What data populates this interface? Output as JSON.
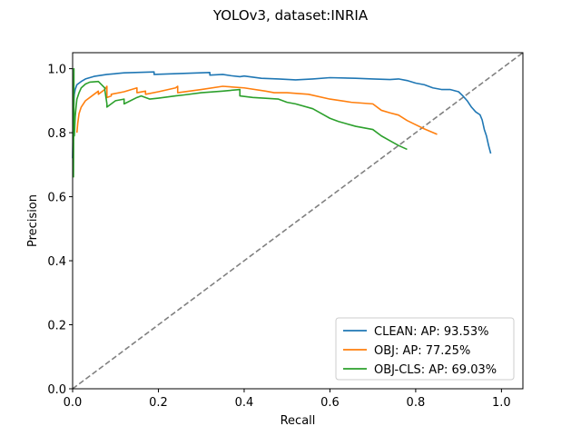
{
  "chart_data": {
    "type": "line",
    "title": "YOLOv3, dataset:INRIA",
    "xlabel": "Recall",
    "ylabel": "Precision",
    "xlim": [
      0,
      1.05
    ],
    "ylim": [
      0,
      1.05
    ],
    "xticks": [
      0.0,
      0.2,
      0.4,
      0.6,
      0.8,
      1.0
    ],
    "yticks": [
      0.0,
      0.2,
      0.4,
      0.6,
      0.8,
      1.0
    ],
    "xtick_labels": [
      "0.0",
      "0.2",
      "0.4",
      "0.6",
      "0.8",
      "1.0"
    ],
    "ytick_labels": [
      "0.0",
      "0.2",
      "0.4",
      "0.6",
      "0.8",
      "1.0"
    ],
    "legend_position": "lower-right",
    "grid": false,
    "reference_line": {
      "x": [
        0,
        1.05
      ],
      "y": [
        0,
        1.05
      ],
      "color": "#808080",
      "style": "dashed"
    },
    "series": [
      {
        "name": "CLEAN: AP: 93.53%",
        "color": "#1f77b4",
        "x": [
          0.0,
          0.001,
          0.002,
          0.003,
          0.004,
          0.006,
          0.01,
          0.02,
          0.03,
          0.05,
          0.08,
          0.12,
          0.19,
          0.19,
          0.32,
          0.32,
          0.35,
          0.37,
          0.39,
          0.4,
          0.44,
          0.48,
          0.52,
          0.56,
          0.6,
          0.66,
          0.7,
          0.74,
          0.76,
          0.78,
          0.8,
          0.82,
          0.84,
          0.86,
          0.88,
          0.9,
          0.91,
          0.92,
          0.93,
          0.94,
          0.95,
          0.955,
          0.96,
          0.965,
          0.97,
          0.975
        ],
        "y": [
          0.72,
          0.8,
          0.86,
          0.9,
          0.92,
          0.935,
          0.95,
          0.96,
          0.968,
          0.976,
          0.982,
          0.987,
          0.99,
          0.982,
          0.988,
          0.98,
          0.982,
          0.978,
          0.975,
          0.977,
          0.97,
          0.968,
          0.965,
          0.968,
          0.972,
          0.97,
          0.968,
          0.966,
          0.968,
          0.963,
          0.955,
          0.95,
          0.94,
          0.935,
          0.935,
          0.928,
          0.915,
          0.9,
          0.88,
          0.865,
          0.856,
          0.84,
          0.81,
          0.79,
          0.76,
          0.735
        ]
      },
      {
        "name": "OBJ: AP: 77.25%",
        "color": "#ff7f0e",
        "x": [
          0.01,
          0.012,
          0.015,
          0.02,
          0.03,
          0.05,
          0.06,
          0.06,
          0.075,
          0.08,
          0.08,
          0.09,
          0.09,
          0.12,
          0.15,
          0.15,
          0.17,
          0.17,
          0.2,
          0.24,
          0.245,
          0.245,
          0.3,
          0.35,
          0.4,
          0.45,
          0.47,
          0.5,
          0.55,
          0.6,
          0.65,
          0.7,
          0.72,
          0.74,
          0.76,
          0.78,
          0.8,
          0.82,
          0.85
        ],
        "y": [
          0.8,
          0.83,
          0.86,
          0.88,
          0.9,
          0.92,
          0.93,
          0.92,
          0.935,
          0.945,
          0.91,
          0.915,
          0.92,
          0.928,
          0.94,
          0.925,
          0.93,
          0.92,
          0.928,
          0.94,
          0.945,
          0.925,
          0.935,
          0.945,
          0.94,
          0.93,
          0.925,
          0.925,
          0.92,
          0.905,
          0.895,
          0.89,
          0.87,
          0.862,
          0.855,
          0.838,
          0.825,
          0.812,
          0.795
        ]
      },
      {
        "name": "OBJ-CLS: AP: 69.03%",
        "color": "#2ca02c",
        "x": [
          0.002,
          0.003,
          0.003,
          0.004,
          0.005,
          0.006,
          0.008,
          0.01,
          0.015,
          0.02,
          0.03,
          0.04,
          0.06,
          0.075,
          0.075,
          0.08,
          0.08,
          0.09,
          0.1,
          0.12,
          0.12,
          0.15,
          0.16,
          0.18,
          0.2,
          0.24,
          0.26,
          0.3,
          0.35,
          0.39,
          0.39,
          0.42,
          0.48,
          0.5,
          0.52,
          0.56,
          0.6,
          0.62,
          0.66,
          0.7,
          0.72,
          0.74,
          0.76,
          0.78
        ],
        "y": [
          0.66,
          1.0,
          0.88,
          0.79,
          0.82,
          0.85,
          0.88,
          0.905,
          0.925,
          0.94,
          0.952,
          0.958,
          0.96,
          0.94,
          0.935,
          0.89,
          0.88,
          0.89,
          0.9,
          0.905,
          0.89,
          0.91,
          0.915,
          0.905,
          0.908,
          0.915,
          0.918,
          0.925,
          0.93,
          0.935,
          0.915,
          0.91,
          0.905,
          0.895,
          0.89,
          0.875,
          0.845,
          0.835,
          0.82,
          0.81,
          0.79,
          0.775,
          0.76,
          0.748
        ]
      }
    ]
  }
}
